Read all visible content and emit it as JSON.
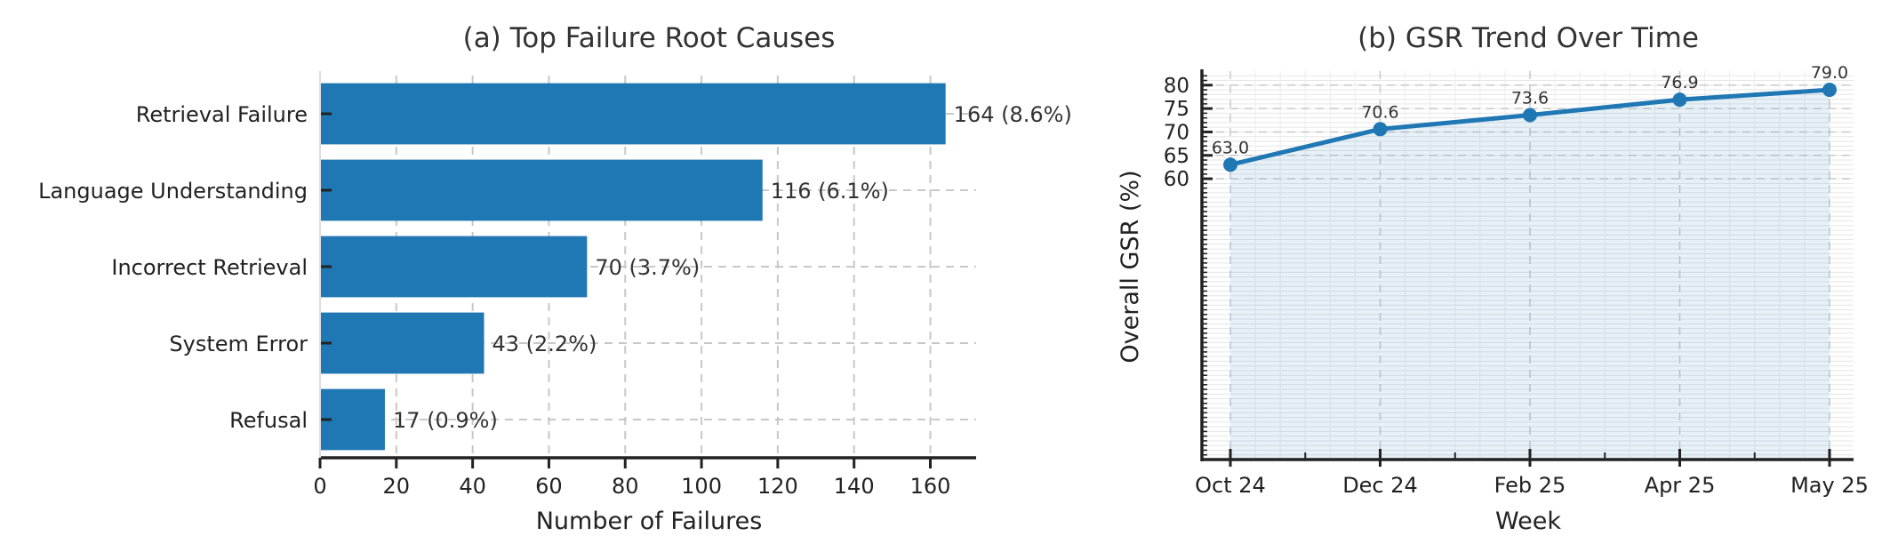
{
  "chart_data": [
    {
      "type": "bar",
      "orientation": "horizontal",
      "title": "(a) Top Failure Root Causes",
      "xlabel": "Number of Failures",
      "ylabel": "",
      "categories": [
        "Retrieval Failure",
        "Language Understanding",
        "Incorrect Retrieval",
        "System Error",
        "Refusal"
      ],
      "values": [
        164,
        116,
        70,
        43,
        17
      ],
      "data_labels": [
        "164 (8.6%)",
        "116 (6.1%)",
        "70 (3.7%)",
        "43 (2.2%)",
        "17 (0.9%)"
      ],
      "xlim": [
        0,
        172
      ],
      "xticks": [
        0,
        20,
        40,
        60,
        80,
        100,
        120,
        140,
        160
      ],
      "grid": true,
      "color": "#1f77b4"
    },
    {
      "type": "line",
      "title": "(b) GSR Trend Over Time",
      "xlabel": "Week",
      "ylabel": "Overall GSR (%)",
      "x": [
        "Oct 24",
        "Dec 24",
        "Feb 25",
        "Apr 25",
        "May 25"
      ],
      "values": [
        63.0,
        70.6,
        73.6,
        76.9,
        79.0
      ],
      "data_labels": [
        "63.0",
        "70.6",
        "73.6",
        "76.9",
        "79.0"
      ],
      "yticks": [
        60,
        65,
        70,
        75,
        80
      ],
      "ylim": [
        0,
        83
      ],
      "grid": true,
      "fill": true,
      "color": "#1f77b4"
    }
  ]
}
